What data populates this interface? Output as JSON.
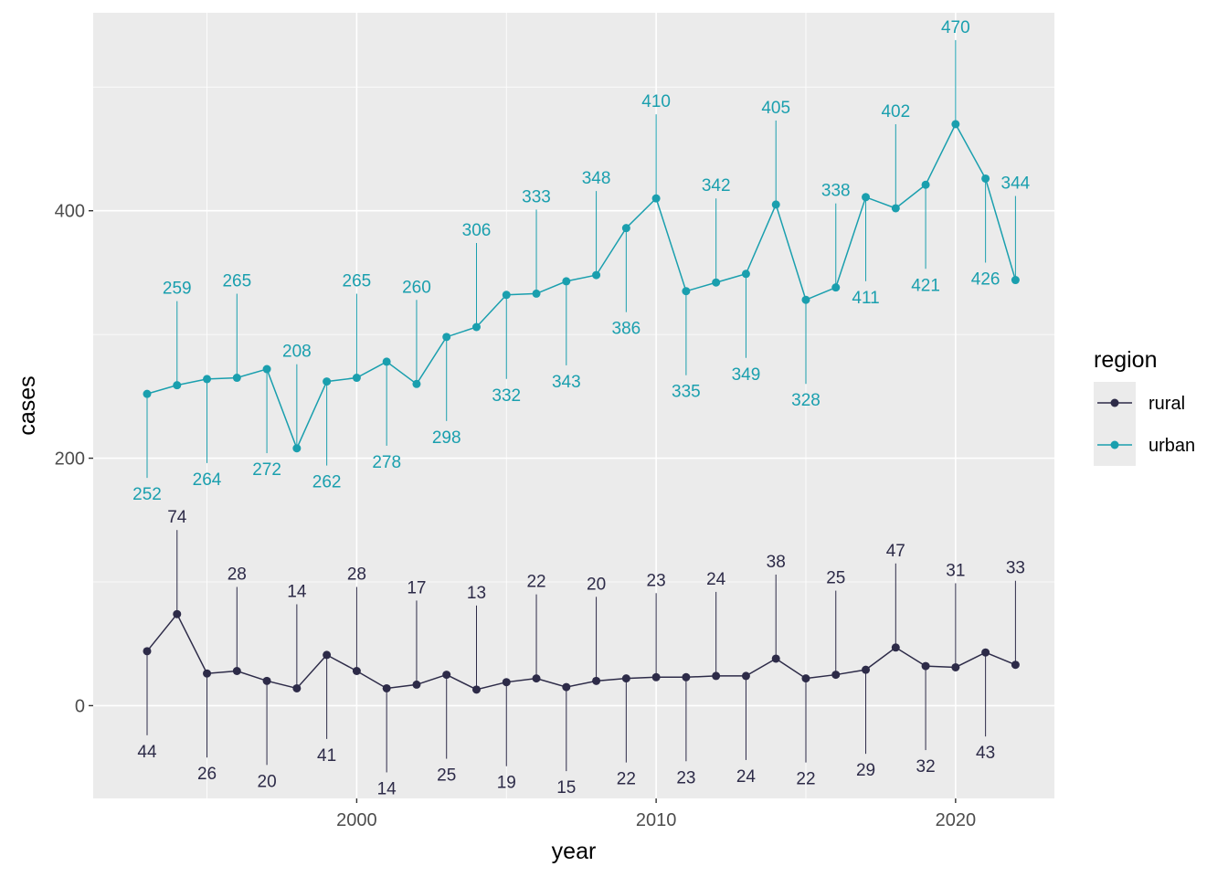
{
  "chart_data": {
    "type": "line",
    "xlabel": "year",
    "ylabel": "cases",
    "xlim": [
      1991.2,
      2023.3
    ],
    "ylim": [
      -75,
      560
    ],
    "x_ticks": [
      2000,
      2010,
      2020
    ],
    "y_ticks": [
      0,
      200,
      400
    ],
    "grid": true,
    "panel_background": "#ebebeb",
    "legend": {
      "title": "region",
      "position": "right"
    },
    "x": [
      1993,
      1994,
      1995,
      1996,
      1997,
      1998,
      1999,
      2000,
      2001,
      2002,
      2003,
      2004,
      2005,
      2006,
      2007,
      2008,
      2009,
      2010,
      2011,
      2012,
      2013,
      2014,
      2015,
      2016,
      2017,
      2018,
      2019,
      2020,
      2021,
      2022
    ],
    "series": [
      {
        "name": "rural",
        "color": "#2d2b48",
        "values": [
          44,
          74,
          26,
          28,
          20,
          14,
          41,
          28,
          14,
          17,
          25,
          13,
          19,
          22,
          15,
          20,
          22,
          23,
          23,
          24,
          24,
          38,
          22,
          25,
          29,
          47,
          32,
          31,
          43,
          33
        ],
        "label_dir": [
          -1,
          1,
          -1,
          1,
          -1,
          1,
          -1,
          1,
          -1,
          1,
          -1,
          1,
          -1,
          1,
          -1,
          1,
          -1,
          1,
          -1,
          1,
          -1,
          1,
          -1,
          1,
          -1,
          1,
          -1,
          1,
          -1,
          1
        ]
      },
      {
        "name": "urban",
        "color": "#1a9fae",
        "values": [
          252,
          259,
          264,
          265,
          272,
          208,
          262,
          265,
          278,
          260,
          298,
          306,
          332,
          333,
          343,
          348,
          386,
          410,
          335,
          342,
          349,
          405,
          328,
          338,
          411,
          402,
          421,
          470,
          426,
          344
        ],
        "label_dir": [
          -1,
          1,
          -1,
          1,
          -1,
          1,
          -1,
          1,
          -1,
          1,
          -1,
          1,
          -1,
          1,
          -1,
          1,
          -1,
          1,
          -1,
          1,
          -1,
          1,
          -1,
          1,
          -1,
          1,
          -1,
          1,
          -1,
          1
        ]
      }
    ]
  }
}
